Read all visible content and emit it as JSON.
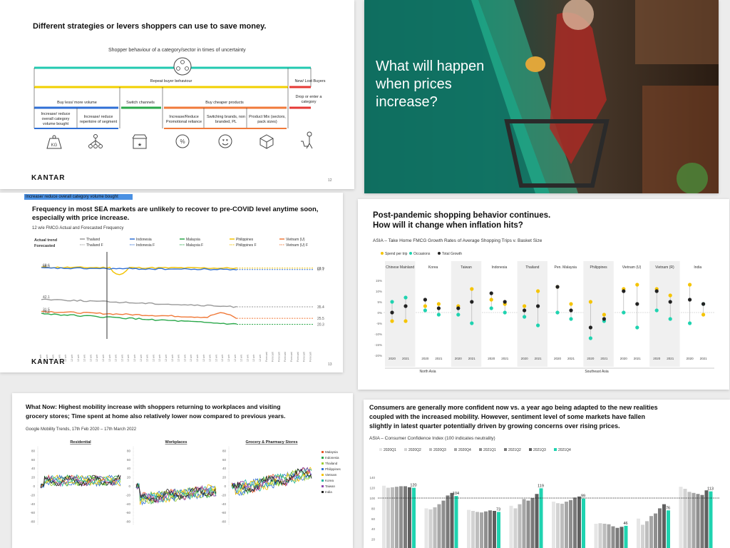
{
  "slide1": {
    "title": "Different strategies or levers shoppers can use to save money.",
    "header": "Shopper behaviour of a category/sector in times of uncertainty",
    "repeat": "Repeat buyer behaviour",
    "new_lost": "New/ Lost Buyers",
    "buy_less": "Buy less/ more volume",
    "switch_channels": "Switch channels",
    "buy_cheaper": "Buy cheaper products",
    "drop_enter": "Drop or enter a category",
    "sub_increase_reduce": "Increase/ reduce overall category volume bought",
    "sub_repertoire": "Increase/ reduce repertoire of segment",
    "sub_promo": "Increase/Reduce Promotional reliance",
    "sub_switch_brands": "Switching brands, non branded, PL",
    "sub_product_mix": "Product Mix (sectors, pack sizes)",
    "kg": "KG",
    "percent": "%",
    "brand": "KANTAR",
    "page": "12"
  },
  "slide2": {
    "tag": "Increase/ reduce overall category volume bought",
    "title_line1": "Frequency in most SEA markets are unlikely to recover to pre-COVID level anytime soon,",
    "title_line2": "especially with price increase.",
    "subtitle": "12 w/e FMCG Actual and Forecasted Frequency",
    "actual_label": "Actual trend",
    "forecast_label": "Forecasted",
    "legend_actual": [
      "Thailand",
      "Indonesia",
      "Malaysia",
      "Philippines",
      "Vietnam (U)"
    ],
    "legend_forecast": [
      "Thailand F",
      "Indonesia F",
      "Malaysia F",
      "Philippines F",
      "Vietnam (U) F"
    ],
    "brand": "KANTAR",
    "page": "13"
  },
  "slide3": {
    "title_line1": "What will happen",
    "title_line2": "when prices",
    "title_line3": "increase?"
  },
  "slide4": {
    "title_line1": "Post-pandemic shopping behavior continues.",
    "title_line2": "How will it change when inflation hits?",
    "subtitle": "ASIA – Take Home FMCG Growth Rates of Average Shopping Trips v. Basket Size",
    "legend": [
      "Spend per trip",
      "Occasions",
      "Total Growth"
    ],
    "region_north": "North Asia",
    "region_south": "Southeast Asia"
  },
  "slide5": {
    "title_line1": "What Now: Highest mobility increase with shoppers returning to workplaces and visiting",
    "title_line2": "grocery stores; Time spent at home also relatively lower now compared to previous years.",
    "subtitle": "Google Mobility Trends, 17th Feb 2020 – 17th March 2022",
    "panels": [
      "Residential",
      "Workplaces",
      "Grocery & Pharmacy Stores"
    ],
    "legend": [
      "Malaysia",
      "Indonesia",
      "Thailand",
      "Philippines",
      "Vietnam",
      "Korea",
      "Taiwan",
      "India"
    ]
  },
  "slide6": {
    "title_line1": "Consumers are generally more confident now vs. a year ago being adapted to the new realities",
    "title_line2": "coupled with the increased mobility. However, sentiment level of some markets have fallen",
    "title_line3": "slightly in latest quarter potentially driven by growing concerns over rising prices.",
    "subtitle": "ASIA – Consumer Confidence Index (100 indicates neutrality)",
    "legend": [
      "2020Q1",
      "2020Q2",
      "2020Q3",
      "2020Q4",
      "2021Q1",
      "2021Q2",
      "2021Q3",
      "2021Q4"
    ]
  },
  "chart_data": [
    {
      "type": "line",
      "title": "12 w/e FMCG Actual and Forecasted Frequency",
      "series": [
        {
          "name": "Philippines",
          "color": "#f2c200",
          "start": 69.6,
          "end": 68.9
        },
        {
          "name": "Indonesia",
          "color": "#2f6fd6",
          "start": 68.9,
          "end": 67.7
        },
        {
          "name": "Thailand",
          "color": "#999999",
          "start": 42.1,
          "end": 35.4
        },
        {
          "name": "Vietnam (U)",
          "color": "#f07a3a",
          "start": 31.5,
          "end": 25.5
        },
        {
          "name": "Malaysia",
          "color": "#2aa84a",
          "start": 29.6,
          "end": 20.3
        }
      ],
      "end_labels": [
        "68.9",
        "67.7",
        "35.4",
        "25.5",
        "20.3"
      ],
      "start_labels": [
        "69.6",
        "68.9",
        "42.1",
        "31.5",
        "29.6"
      ]
    },
    {
      "type": "scatter",
      "title": "ASIA – Take Home FMCG Growth Rates of Average Shopping Trips v. Basket Size",
      "categories": [
        "Chinese Mainland",
        "Korea",
        "Taiwan",
        "Indonesia",
        "Thailand",
        "Pen. Malaysia",
        "Philippines",
        "Vietnam (U)",
        "Vietnam (R)",
        "India"
      ],
      "x": [
        "2020",
        "2021"
      ],
      "y_ticks": [
        "15%",
        "10%",
        "5%",
        "0%",
        "-5%",
        "-10%",
        "-15%",
        "-20%"
      ],
      "ylim": [
        -20,
        15
      ],
      "series": [
        {
          "name": "Spend per trip",
          "color": "#f5c400",
          "values": [
            [
              -4,
              -4
            ],
            [
              3,
              4
            ],
            [
              3,
              11
            ],
            [
              6,
              4
            ],
            [
              3,
              10
            ],
            [
              12,
              4
            ],
            [
              5,
              -1
            ],
            [
              11,
              13
            ],
            [
              11,
              8
            ],
            [
              13,
              -1
            ]
          ]
        },
        {
          "name": "Occasions",
          "color": "#1fd3b0",
          "values": [
            [
              5,
              7
            ],
            [
              1,
              -1
            ],
            [
              -1,
              -5
            ],
            [
              2,
              0
            ],
            [
              -2,
              -6
            ],
            [
              0,
              -3
            ],
            [
              -12,
              -4
            ],
            [
              0,
              -7
            ],
            [
              1,
              -3
            ],
            [
              -5,
              4
            ]
          ]
        },
        {
          "name": "Total Growth",
          "color": "#222222",
          "values": [
            [
              0,
              3
            ],
            [
              6,
              2
            ],
            [
              2,
              5
            ],
            [
              9,
              5
            ],
            [
              1,
              3
            ],
            [
              12,
              1
            ],
            [
              -7,
              -3
            ],
            [
              10,
              4
            ],
            [
              10,
              5
            ],
            [
              6,
              4
            ]
          ]
        }
      ]
    },
    {
      "type": "line",
      "title": "Google Mobility Trends, 17th Feb 2020 – 17th March 2022",
      "panels": [
        "Residential",
        "Workplaces",
        "Grocery & Pharmacy Stores"
      ],
      "y_ticks": [
        "80",
        "60",
        "40",
        "20",
        "0",
        "-20",
        "-40",
        "-60",
        "-80"
      ],
      "series": [
        "Malaysia",
        "Indonesia",
        "Thailand",
        "Philippines",
        "Vietnam",
        "Korea",
        "Taiwan",
        "India"
      ],
      "colors": [
        "#e8592b",
        "#2aa84a",
        "#9acd32",
        "#2f6fd6",
        "#f5c400",
        "#1fb5a0",
        "#8e44ad",
        "#222222"
      ]
    },
    {
      "type": "bar",
      "title": "ASIA – Consumer Confidence Index (100 indicates neutrality)",
      "series_names": [
        "2020Q1",
        "2020Q2",
        "2020Q3",
        "2020Q4",
        "2021Q1",
        "2021Q2",
        "2021Q3",
        "2021Q4"
      ],
      "colors": [
        "#e6e6e6",
        "#d2d2d2",
        "#bdbdbd",
        "#a6a6a6",
        "#8f8f8f",
        "#7a7a7a",
        "#5f5f5f",
        "#1fd3b0"
      ],
      "y_ticks": [
        "140",
        "120",
        "100",
        "80",
        "60",
        "40",
        "20"
      ],
      "ylim": [
        0,
        140
      ],
      "groups": [
        {
          "values": [
            124,
            120,
            121,
            122,
            123,
            123,
            121,
            120
          ],
          "label": "120"
        },
        {
          "values": [
            80,
            78,
            82,
            88,
            95,
            105,
            110,
            104
          ],
          "label": "104"
        },
        {
          "values": [
            77,
            75,
            73,
            72,
            74,
            76,
            75,
            73
          ],
          "label": "73"
        },
        {
          "values": [
            85,
            80,
            88,
            98,
            95,
            100,
            108,
            119
          ],
          "label": "119"
        },
        {
          "values": [
            93,
            90,
            89,
            93,
            96,
            101,
            103,
            99
          ],
          "label": "99"
        },
        {
          "values": [
            50,
            51,
            50,
            49,
            45,
            42,
            44,
            46
          ],
          "label": "46"
        },
        {
          "values": [
            60,
            48,
            55,
            65,
            70,
            80,
            88,
            76
          ],
          "label": "76"
        },
        {
          "values": [
            122,
            118,
            112,
            110,
            108,
            106,
            115,
            113
          ],
          "label": "113"
        }
      ]
    }
  ]
}
